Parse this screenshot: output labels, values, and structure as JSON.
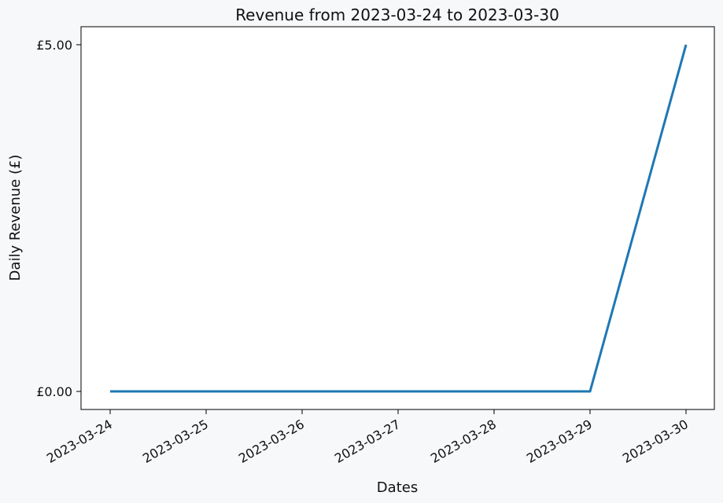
{
  "chart_data": {
    "type": "line",
    "title": "Revenue from 2023-03-24 to 2023-03-30",
    "xlabel": "Dates",
    "ylabel": "Daily Revenue (£)",
    "x": [
      "2023-03-24",
      "2023-03-25",
      "2023-03-26",
      "2023-03-27",
      "2023-03-28",
      "2023-03-29",
      "2023-03-30"
    ],
    "series": [
      {
        "values": [
          0,
          0,
          0,
          0,
          0,
          0,
          5
        ],
        "color": "#1f77b4"
      }
    ],
    "yticks": [
      0,
      5
    ],
    "ytick_labels": [
      "£0.00",
      "£5.00"
    ],
    "xtick_labels": [
      "2023-03-24",
      "2023-03-25",
      "2023-03-26",
      "2023-03-27",
      "2023-03-28",
      "2023-03-29",
      "2023-03-30"
    ],
    "ylim": [
      -0.26,
      5.26
    ],
    "grid": false,
    "background": "#f7f8fa",
    "plot_background": "#ffffff"
  }
}
